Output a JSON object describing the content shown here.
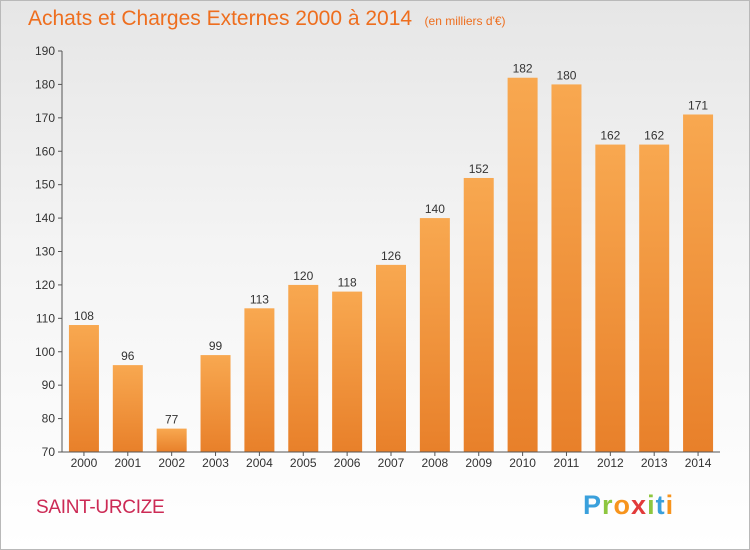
{
  "title": "Achats et Charges Externes 2000 à 2014",
  "unit": "(en milliers d'€)",
  "commune": "SAINT-URCIZE",
  "logo": {
    "letters": [
      "P",
      "r",
      "o",
      "x",
      "i",
      "t",
      "i"
    ],
    "colors": [
      "#3aa0dc",
      "#8dc63f",
      "#f7941d",
      "#e23a3a",
      "#8dc63f",
      "#3aa0dc",
      "#f7941d"
    ]
  },
  "colors": {
    "bar_light": "#f8a850",
    "bar_dark": "#e8802a",
    "title": "#ee6e1e",
    "commune": "#cc2a55"
  },
  "chart_data": {
    "type": "bar",
    "title": "Achats et Charges Externes 2000 à 2014",
    "categories": [
      "2000",
      "2001",
      "2002",
      "2003",
      "2004",
      "2005",
      "2006",
      "2007",
      "2008",
      "2009",
      "2010",
      "2011",
      "2012",
      "2013",
      "2014"
    ],
    "values": [
      108,
      96,
      77,
      99,
      113,
      120,
      118,
      126,
      140,
      152,
      182,
      180,
      162,
      162,
      171
    ],
    "yticks": [
      70,
      80,
      90,
      100,
      110,
      120,
      130,
      140,
      150,
      160,
      170,
      180,
      190
    ],
    "ylim": [
      70,
      190
    ],
    "grid": false,
    "xlabel": "",
    "ylabel": ""
  }
}
